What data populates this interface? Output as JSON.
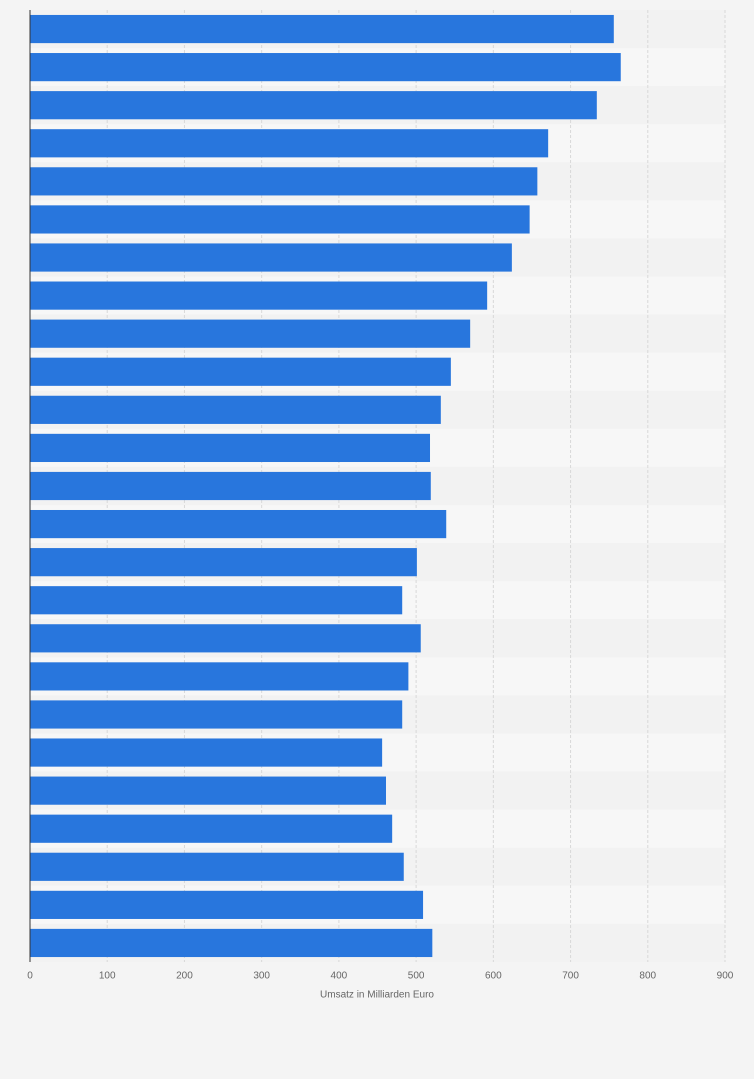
{
  "chart_data": {
    "type": "barh",
    "x_label": "Umsatz in Milliarden Euro",
    "categories": [
      null,
      null,
      null,
      null,
      null,
      null,
      null,
      null,
      null,
      null,
      null,
      null,
      null,
      null,
      null,
      null,
      null,
      null,
      null,
      null,
      null,
      null,
      null,
      null,
      null
    ],
    "values": [
      756,
      765,
      734,
      671,
      657,
      647,
      624,
      592,
      570,
      545,
      532,
      518,
      519,
      539,
      501,
      482,
      506,
      490,
      482,
      456,
      461,
      469,
      484,
      509,
      521
    ],
    "color": "#2876dd",
    "xlim": [
      0,
      900
    ],
    "xticks": [
      0,
      100,
      200,
      300,
      400,
      500,
      600,
      700,
      800,
      900
    ],
    "grid": true
  }
}
